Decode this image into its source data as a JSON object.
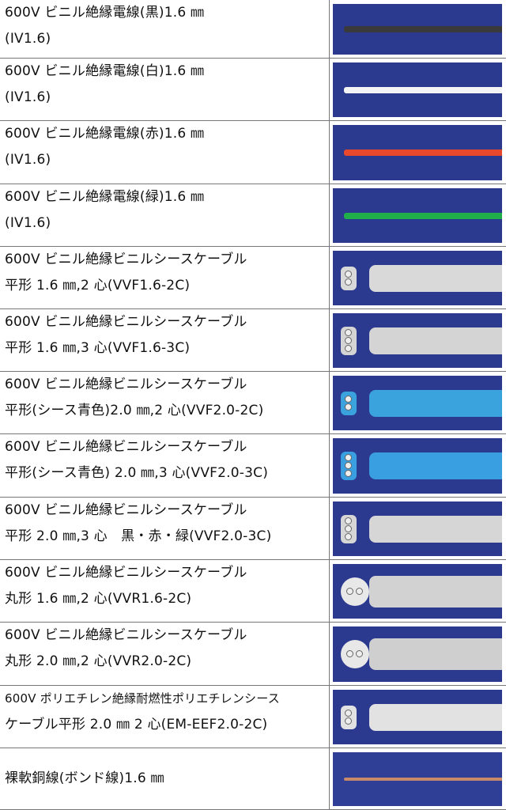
{
  "rows": [
    {
      "line1": "600V ビニル絶縁電線(黒)1.6 ㎜",
      "line2": "(IV1.6)",
      "type": "wire",
      "color": "#3a3a3a"
    },
    {
      "line1": "600V ビニル絶縁電線(白)1.6 ㎜",
      "line2": "(IV1.6)",
      "type": "wire",
      "color": "#f4f4f4"
    },
    {
      "line1": "600V ビニル絶縁電線(赤)1.6 ㎜",
      "line2": "(IV1.6)",
      "type": "wire",
      "color": "#e8482c"
    },
    {
      "line1": "600V ビニル絶縁電線(緑)1.6 ㎜",
      "line2": "(IV1.6)",
      "type": "wire",
      "color": "#1fae4a"
    },
    {
      "line1": "600V ビニル絶縁ビニルシースケーブル",
      "line2": "平形 1.6 ㎜,2 心(VVF1.6-2C)",
      "type": "flat",
      "color": "#d9d9d9",
      "cores": 2
    },
    {
      "line1": "600V ビニル絶縁ビニルシースケーブル",
      "line2": "平形 1.6 ㎜,3 心(VVF1.6-3C)",
      "type": "flat",
      "color": "#d4d4d4",
      "cores": 3
    },
    {
      "line1": "600V ビニル絶縁ビニルシースケーブル",
      "line2": "平形(シース青色)2.0 ㎜,2 心(VVF2.0-2C)",
      "type": "flat",
      "color": "#3aa2dd",
      "cores": 2
    },
    {
      "line1": "600V ビニル絶縁ビニルシースケーブル",
      "line2": "平形(シース青色) 2.0 ㎜,3 心(VVF2.0-3C)",
      "type": "flat",
      "color": "#3a9fe0",
      "cores": 3
    },
    {
      "line1": "600V ビニル絶縁ビニルシースケーブル",
      "line2": "平形 2.0 ㎜,3 心　黒・赤・緑(VVF2.0-3C)",
      "type": "flat",
      "color": "#d6d6d6",
      "cores": 3
    },
    {
      "line1": "600V ビニル絶縁ビニルシースケーブル",
      "line2": "丸形 1.6 ㎜,2 心(VVR1.6-2C)",
      "type": "round",
      "color": "#d2d2d2"
    },
    {
      "line1": "600V ビニル絶縁ビニルシースケーブル",
      "line2": "丸形 2.0 ㎜,2 心(VVR2.0-2C)",
      "type": "round",
      "color": "#cfcfcf"
    },
    {
      "line1": "600V ポリエチレン絶縁耐燃性ポリエチレンシース",
      "line2": "ケーブル平形 2.0 ㎜ 2 心(EM-EEF2.0-2C)",
      "type": "flat",
      "color": "#e2e2e2",
      "cores": 2
    },
    {
      "line1": "裸軟銅線(ボンド線)1.6 ㎜",
      "line2": "",
      "type": "bare",
      "color": "#c98a6a"
    }
  ]
}
